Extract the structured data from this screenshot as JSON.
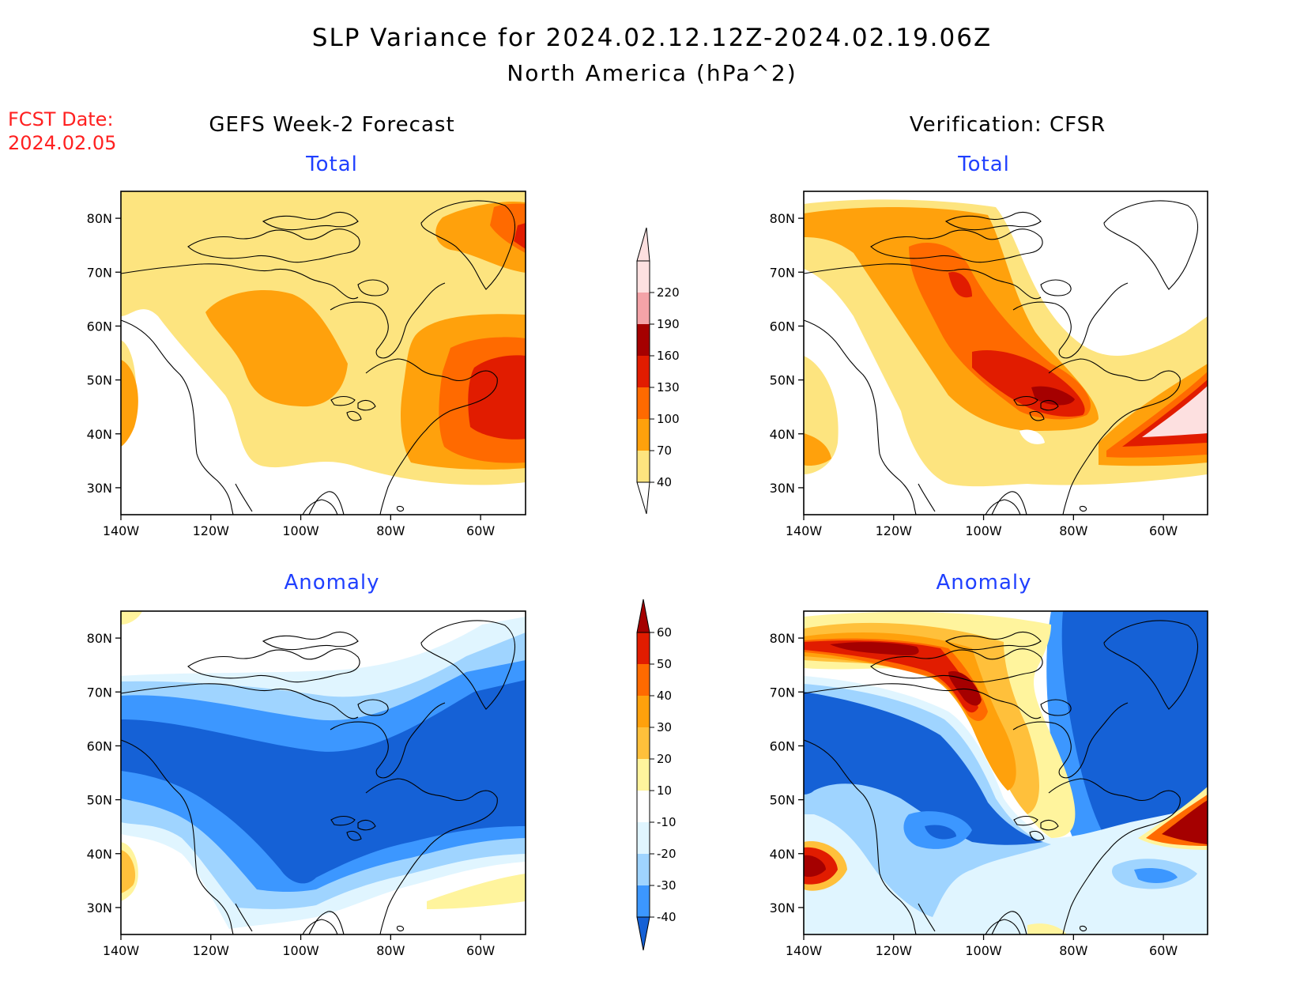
{
  "title": "SLP Variance for 2024.02.12.12Z-2024.02.19.06Z",
  "subtitle": "North America (hPa^2)",
  "fcst_label": "FCST Date:",
  "fcst_date": "2024.02.05",
  "columns": {
    "left": "GEFS Week-2 Forecast",
    "right": "Verification: CFSR"
  },
  "panel_titles": {
    "total": "Total",
    "anomaly": "Anomaly"
  },
  "axes": {
    "lat_ticks": [
      "80N",
      "70N",
      "60N",
      "50N",
      "40N",
      "30N"
    ],
    "lon_ticks": [
      "140W",
      "120W",
      "100W",
      "80W",
      "60W"
    ]
  },
  "total_colorbar": {
    "levels": [
      "40",
      "70",
      "100",
      "130",
      "160",
      "190",
      "220"
    ],
    "colors": [
      "#fde47f",
      "#ffa10c",
      "#ff6a00",
      "#e11c00",
      "#a50000",
      "#f4a3a8",
      "#fde0e0"
    ]
  },
  "anomaly_colorbar": {
    "levels": [
      "60",
      "50",
      "40",
      "30",
      "20",
      "10",
      "-10",
      "-20",
      "-30",
      "-40"
    ],
    "colors": [
      "#a50000",
      "#e11c00",
      "#ff6a00",
      "#ffa10c",
      "#ffc03b",
      "#fff49d",
      "#ffffff",
      "#e0f5ff",
      "#9fd4ff",
      "#3c97ff",
      "#1561d6"
    ]
  }
}
